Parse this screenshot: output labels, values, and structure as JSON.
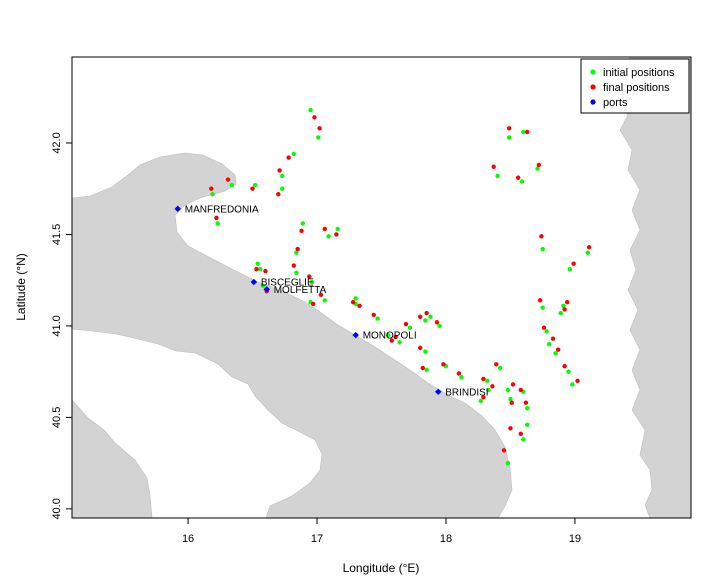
{
  "chart_data": {
    "type": "scatter",
    "title": "",
    "xlabel": "Longitude (°E)",
    "ylabel": "Latitude (°N)",
    "xlim": [
      15.1,
      19.9
    ],
    "ylim": [
      39.95,
      42.47
    ],
    "xticks": [
      16,
      17,
      18,
      19
    ],
    "yticks": [
      40.0,
      40.5,
      41.0,
      41.5,
      42.0
    ],
    "ytick_labels": [
      "40.0",
      "40.5",
      "41.0",
      "41.5",
      "42.0"
    ],
    "grid": false,
    "legend_position": "top-right",
    "colors": {
      "land": "#d3d3d3",
      "sea": "#ffffff",
      "initial": "#00ff00",
      "final": "#ff0000",
      "ports": "#0000ff"
    },
    "series": [
      {
        "name": "initial positions",
        "color": "#00ff00",
        "points": [
          [
            16.95,
            42.18
          ],
          [
            17.01,
            42.03
          ],
          [
            16.82,
            41.94
          ],
          [
            16.73,
            41.82
          ],
          [
            16.89,
            41.56
          ],
          [
            16.84,
            41.4
          ],
          [
            16.84,
            41.29
          ],
          [
            16.96,
            41.24
          ],
          [
            17.09,
            41.49
          ],
          [
            17.16,
            41.53
          ],
          [
            16.54,
            41.34
          ],
          [
            16.56,
            41.31
          ],
          [
            16.58,
            41.22
          ],
          [
            16.52,
            41.77
          ],
          [
            16.34,
            41.77
          ],
          [
            16.23,
            41.56
          ],
          [
            16.73,
            41.75
          ],
          [
            16.19,
            41.72
          ],
          [
            16.95,
            41.13
          ],
          [
            17.06,
            41.14
          ],
          [
            17.3,
            41.12
          ],
          [
            17.47,
            41.04
          ],
          [
            17.64,
            40.91
          ],
          [
            17.55,
            40.95
          ],
          [
            17.84,
            41.03
          ],
          [
            17.88,
            41.05
          ],
          [
            17.95,
            41.0
          ],
          [
            17.72,
            40.99
          ],
          [
            17.84,
            40.86
          ],
          [
            17.85,
            40.76
          ],
          [
            18.0,
            40.78
          ],
          [
            18.12,
            40.72
          ],
          [
            18.32,
            40.7
          ],
          [
            18.42,
            40.77
          ],
          [
            18.33,
            40.65
          ],
          [
            18.27,
            40.59
          ],
          [
            18.5,
            40.6
          ],
          [
            18.48,
            40.65
          ],
          [
            18.6,
            40.64
          ],
          [
            18.63,
            40.55
          ],
          [
            18.63,
            40.46
          ],
          [
            18.48,
            40.25
          ],
          [
            18.6,
            40.38
          ],
          [
            18.4,
            41.82
          ],
          [
            18.49,
            42.03
          ],
          [
            18.59,
            41.79
          ],
          [
            18.71,
            41.86
          ],
          [
            18.75,
            41.42
          ],
          [
            18.75,
            41.1
          ],
          [
            18.78,
            40.97
          ],
          [
            18.8,
            40.9
          ],
          [
            18.85,
            40.85
          ],
          [
            18.89,
            41.07
          ],
          [
            18.91,
            41.11
          ],
          [
            18.95,
            40.75
          ],
          [
            18.98,
            40.68
          ],
          [
            18.96,
            41.31
          ],
          [
            19.1,
            41.4
          ],
          [
            18.6,
            42.06
          ],
          [
            17.3,
            41.15
          ]
        ]
      },
      {
        "name": "final positions",
        "color": "#ff0000",
        "points": [
          [
            16.98,
            42.14
          ],
          [
            17.02,
            42.08
          ],
          [
            16.78,
            41.92
          ],
          [
            16.71,
            41.85
          ],
          [
            16.88,
            41.52
          ],
          [
            16.85,
            41.42
          ],
          [
            16.82,
            41.33
          ],
          [
            16.94,
            41.27
          ],
          [
            17.06,
            41.53
          ],
          [
            17.15,
            41.5
          ],
          [
            16.53,
            41.31
          ],
          [
            16.6,
            41.3
          ],
          [
            16.61,
            41.19
          ],
          [
            16.5,
            41.75
          ],
          [
            16.31,
            41.8
          ],
          [
            16.22,
            41.59
          ],
          [
            16.7,
            41.72
          ],
          [
            16.18,
            41.75
          ],
          [
            16.97,
            41.12
          ],
          [
            17.03,
            41.17
          ],
          [
            17.33,
            41.11
          ],
          [
            17.44,
            41.06
          ],
          [
            17.61,
            40.94
          ],
          [
            17.58,
            40.92
          ],
          [
            17.8,
            41.05
          ],
          [
            17.85,
            41.07
          ],
          [
            17.93,
            41.02
          ],
          [
            17.69,
            41.01
          ],
          [
            17.8,
            40.88
          ],
          [
            17.82,
            40.77
          ],
          [
            17.98,
            40.79
          ],
          [
            18.1,
            40.74
          ],
          [
            18.29,
            40.71
          ],
          [
            18.39,
            40.79
          ],
          [
            18.36,
            40.67
          ],
          [
            18.29,
            40.61
          ],
          [
            18.51,
            40.58
          ],
          [
            18.52,
            40.68
          ],
          [
            18.58,
            40.65
          ],
          [
            18.62,
            40.58
          ],
          [
            18.5,
            40.44
          ],
          [
            18.45,
            40.32
          ],
          [
            18.58,
            40.41
          ],
          [
            18.37,
            41.87
          ],
          [
            18.49,
            42.08
          ],
          [
            18.56,
            41.81
          ],
          [
            18.72,
            41.88
          ],
          [
            18.74,
            41.49
          ],
          [
            18.73,
            41.14
          ],
          [
            18.76,
            40.99
          ],
          [
            18.83,
            40.93
          ],
          [
            18.87,
            40.87
          ],
          [
            18.92,
            41.09
          ],
          [
            18.94,
            41.13
          ],
          [
            18.92,
            40.78
          ],
          [
            19.02,
            40.7
          ],
          [
            18.99,
            41.34
          ],
          [
            19.11,
            41.43
          ],
          [
            18.63,
            42.06
          ],
          [
            17.28,
            41.13
          ]
        ]
      },
      {
        "name": "ports",
        "color": "#0000ff",
        "points": [
          [
            15.92,
            41.64
          ],
          [
            16.51,
            41.24
          ],
          [
            16.61,
            41.2
          ],
          [
            17.3,
            40.95
          ],
          [
            17.94,
            40.64
          ]
        ],
        "labels": [
          "MANFREDONIA",
          "BISCEGLIE",
          "MOLFETTA",
          "MONOPOLI",
          "BRINDISI"
        ]
      }
    ]
  }
}
